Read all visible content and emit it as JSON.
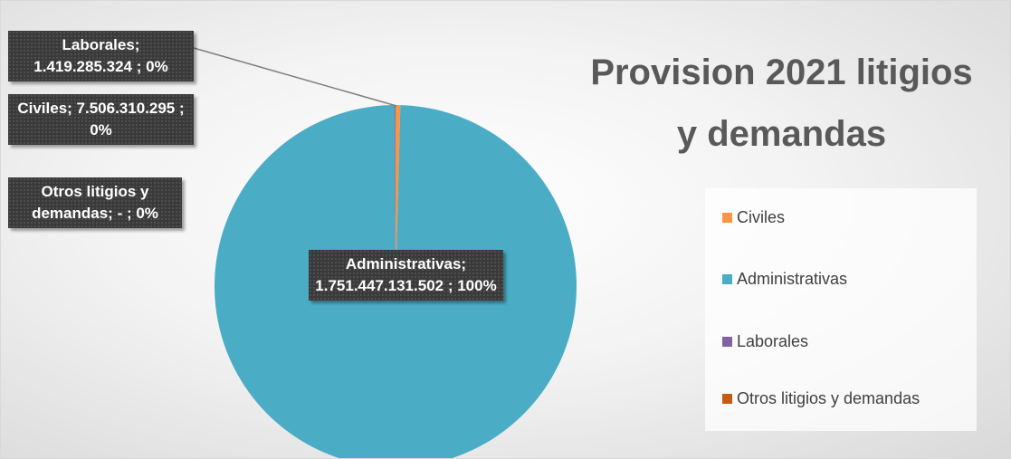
{
  "chart_data": {
    "type": "pie",
    "title": "Provision 2021 litigios y demandas",
    "categories": [
      "Civiles",
      "Administrativas",
      "Laborales",
      "Otros litigios y demandas"
    ],
    "values": [
      7506310295,
      1751447131502,
      1419285324,
      0
    ],
    "value_labels": [
      "Civiles; 7.506.310.295 ; 0%",
      "Administrativas; 1.751.447.131.502 ; 100%",
      "Laborales; 1.419.285.324 ; 0%",
      "Otros litigios y demandas; - ; 0%"
    ],
    "colors": [
      "#f79646",
      "#4bacc6",
      "#8064a2",
      "#c55a11"
    ],
    "legend": "right"
  }
}
